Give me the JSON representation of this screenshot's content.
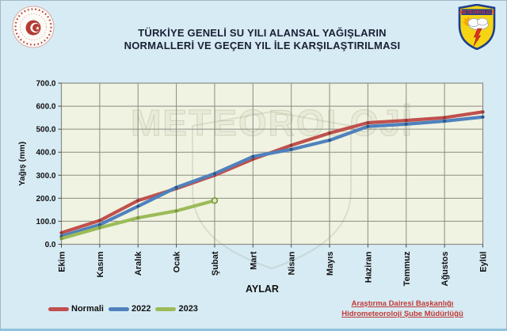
{
  "header": {
    "title_line1": "TÜRKİYE GENELİ  SU YILI ALANSAL YAĞIŞLARIN",
    "title_line2": "NORMALLERİ VE GEÇEN YIL İLE KARŞILAŞTIRILMASI",
    "left_logo": "tc-tarim-ve-orman-bakanligi-emblem",
    "right_logo": "meteoroloji-shield",
    "right_logo_text": "METEOROLOJİ"
  },
  "watermark_text": "METEOROLOJİ",
  "footer": {
    "credit_line1": "Araştırma Dairesi Başkanlığı",
    "credit_line2": "Hidrometeoroloji Şube Müdürlüğü"
  },
  "chart_data": {
    "type": "line",
    "title": "TÜRKİYE GENELİ SU YILI ALANSAL YAĞIŞLARIN NORMALLERİ VE GEÇEN YIL İLE KARŞILAŞTIRILMASI",
    "xlabel": "AYLAR",
    "ylabel": "Yağış (mm)",
    "ylim": [
      0,
      700
    ],
    "ytick_step": 100,
    "ytick_labels": [
      "0.0",
      "100.0",
      "200.0",
      "300.0",
      "400.0",
      "500.0",
      "600.0",
      "700.0"
    ],
    "grid": true,
    "legend_position": "bottom-left",
    "categories": [
      "Ekim",
      "Kasım",
      "Aralık",
      "Ocak",
      "Şubat",
      "Mart",
      "Nisan",
      "Mayıs",
      "Haziran",
      "Temmuz",
      "Ağustos",
      "Eylül"
    ],
    "series": [
      {
        "name": "Normali",
        "color": "#c0504d",
        "marker_color": "#8c3a37",
        "values": [
          50,
          103,
          190,
          242,
          300,
          370,
          430,
          483,
          528,
          538,
          550,
          575
        ]
      },
      {
        "name": "2022",
        "color": "#4f81bd",
        "marker_color": "#2a567f",
        "values": [
          35,
          85,
          165,
          247,
          307,
          381,
          412,
          452,
          512,
          522,
          535,
          553
        ]
      },
      {
        "name": "2023",
        "color": "#9bbb59",
        "marker_color": "#77933c",
        "values": [
          25,
          72,
          115,
          145,
          190
        ]
      }
    ]
  },
  "colors": {
    "page_bg": "#d7ebf4",
    "plot_bg": "#f0f3e1",
    "grid": "#8a8c82",
    "series_red": "#c0504d",
    "series_blue": "#4f81bd",
    "series_green": "#9bbb59",
    "credit_red": "#c03a35",
    "title_text": "#1a2035"
  }
}
